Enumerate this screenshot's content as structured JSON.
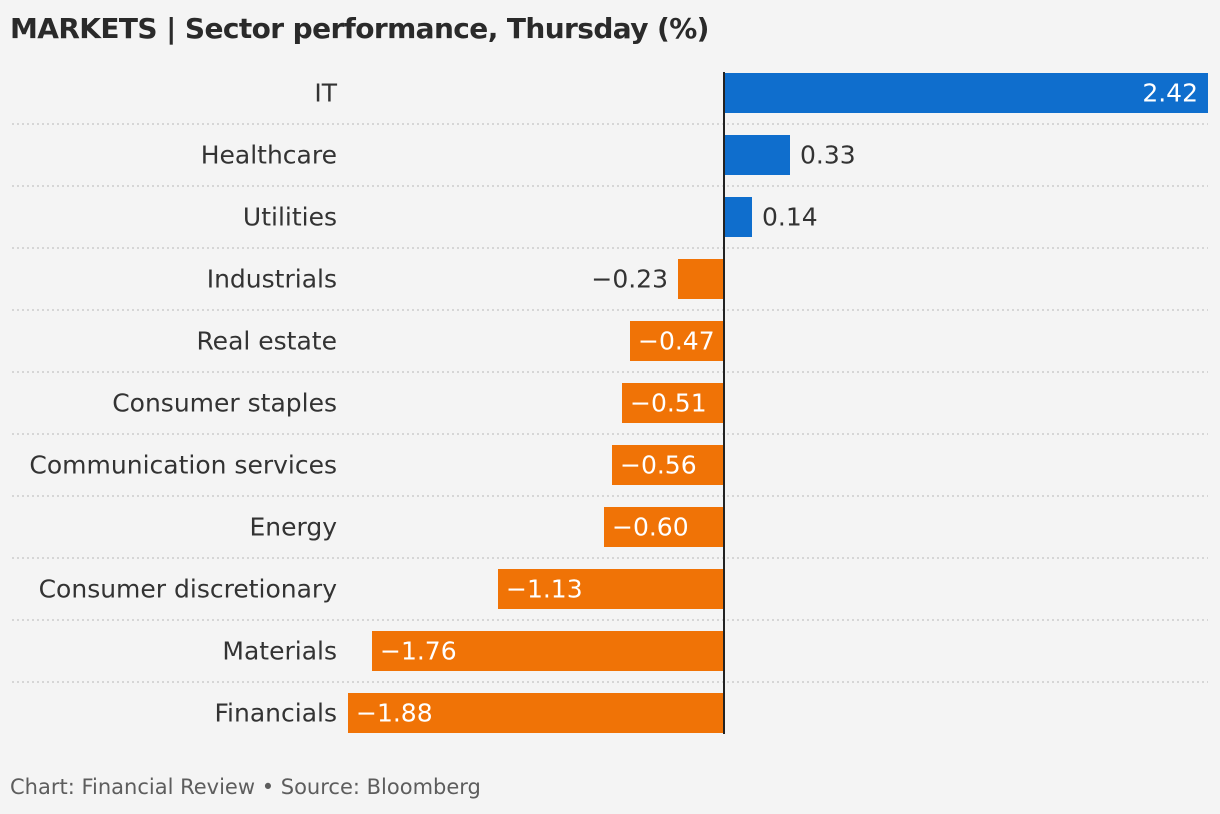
{
  "title": "MARKETS | Sector performance, Thursday (%)",
  "footer": "Chart: Financial Review • Source: Bloomberg",
  "colors": {
    "positive": "#0f6ecd",
    "negative": "#f07306",
    "gridline": "#c4c4c4",
    "axis": "#222222",
    "label_text": "#333333",
    "value_inside": "#ffffff",
    "value_outside": "#333333"
  },
  "chart_data": {
    "type": "bar",
    "orientation": "horizontal",
    "categories": [
      "IT",
      "Healthcare",
      "Utilities",
      "Industrials",
      "Real estate",
      "Consumer staples",
      "Communication services",
      "Energy",
      "Consumer discretionary",
      "Materials",
      "Financials"
    ],
    "values": [
      2.42,
      0.33,
      0.14,
      -0.23,
      -0.47,
      -0.51,
      -0.56,
      -0.6,
      -1.13,
      -1.76,
      -1.88
    ],
    "value_labels": [
      "2.42",
      "0.33",
      "0.14",
      "−0.23",
      "−0.47",
      "−0.51",
      "−0.56",
      "−0.60",
      "−1.13",
      "−1.76",
      "−1.88"
    ],
    "xlim": [
      -1.88,
      2.42
    ],
    "grid": "dotted row separators",
    "legend": "none"
  }
}
